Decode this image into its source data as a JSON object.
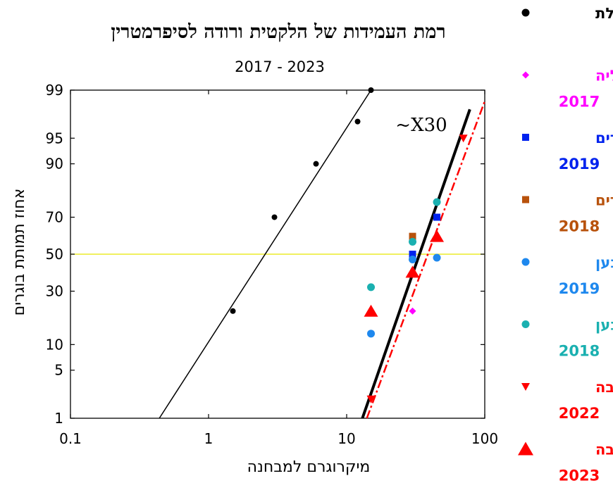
{
  "chart_data": {
    "type": "scatter",
    "title": "רמת העמידות של הלקטית ורודה לסיפרמטרין",
    "subtitle": "2017 - 2023",
    "xlabel": "מיקרוגרם למבחנה",
    "ylabel": "אחוז תמותת בוגרים",
    "x_scale": "log",
    "y_scale": "probit",
    "xlim": [
      0.1,
      100
    ],
    "ylim": [
      1,
      99
    ],
    "x_ticks": [
      "0.1",
      "1",
      "10",
      "100"
    ],
    "y_ticks": [
      "1",
      "5",
      "10",
      "30",
      "50",
      "70",
      "90",
      "95",
      "99"
    ],
    "y_tick_values": [
      1,
      5,
      10,
      30,
      50,
      70,
      90,
      95,
      99
    ],
    "x_tick_values": [
      0.1,
      1,
      10,
      100
    ],
    "annotation": "~X30",
    "reference_line_y": 50,
    "legend_position": "right",
    "series": [
      {
        "name": "גילת",
        "year": "",
        "color": "#000000",
        "marker": "circle-small",
        "legend_marker": "circle",
        "points": [
          [
            1.5,
            21
          ],
          [
            3,
            70
          ],
          [
            6,
            90
          ],
          [
            12,
            97
          ],
          [
            15,
            99
          ]
        ],
        "fit": {
          "x": [
            0.44,
            15
          ],
          "y": [
            1,
            99
          ],
          "dash": "solid",
          "width": 1.5
        }
      },
      {
        "name": "דליה",
        "year": "2017",
        "color": "#ff00ff",
        "marker": "diamond",
        "legend_marker": "diamond",
        "points": [
          [
            30,
            21
          ]
        ]
      },
      {
        "name": "רבדים",
        "year": "2019",
        "color": "#0022ee",
        "marker": "square",
        "legend_marker": "square",
        "points": [
          [
            30,
            50
          ],
          [
            45,
            70
          ]
        ]
      },
      {
        "name": "רבדים",
        "year": "2018",
        "color": "#b8520c",
        "marker": "square",
        "legend_marker": "square",
        "points": [
          [
            30,
            60
          ]
        ]
      },
      {
        "name": "נען",
        "year": "2019",
        "color": "#1e88ee",
        "marker": "circle",
        "legend_marker": "circle",
        "points": [
          [
            15,
            13
          ],
          [
            30,
            47
          ],
          [
            45,
            48
          ]
        ]
      },
      {
        "name": "נען",
        "year": "2018",
        "color": "#1ab0b0",
        "marker": "circle",
        "legend_marker": "circle",
        "points": [
          [
            15,
            32
          ],
          [
            30,
            57
          ],
          [
            45,
            77
          ]
        ]
      },
      {
        "name": "נגבה",
        "year": "2022",
        "color": "#ff0000",
        "marker": "triangle-down",
        "legend_marker": "triangle-down",
        "points": [
          [
            15,
            2
          ],
          [
            70,
            95
          ]
        ],
        "fit": {
          "x": [
            14,
            100
          ],
          "y": [
            1,
            98.5
          ],
          "dash": "dashdot",
          "width": 2.5
        }
      },
      {
        "name": "נגבה",
        "year": "2023",
        "color": "#ff0000",
        "marker": "triangle-up",
        "legend_marker": "triangle-up-big",
        "points": [
          [
            15,
            21
          ],
          [
            30,
            40
          ],
          [
            45,
            60
          ]
        ]
      }
    ],
    "fits": [
      {
        "series": "black-bold",
        "color": "#000000",
        "x": [
          13,
          78
        ],
        "y": [
          1,
          98
        ],
        "dash": "solid",
        "width": 4
      }
    ]
  }
}
